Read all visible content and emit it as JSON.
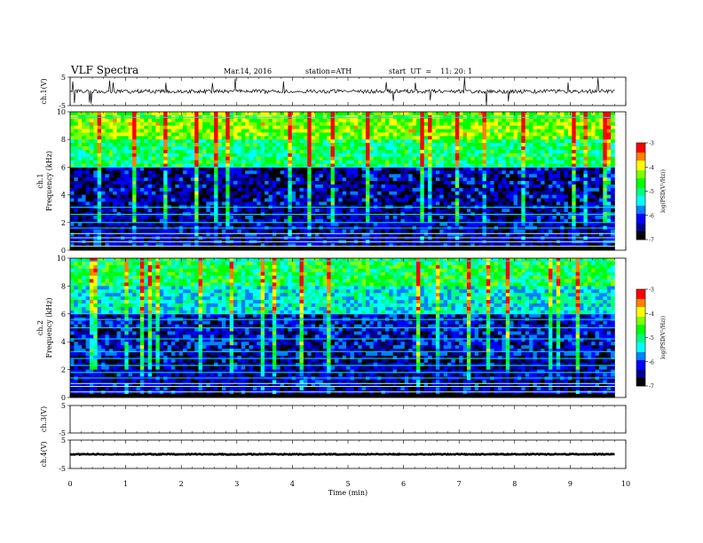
{
  "header": {
    "title": "VLF Spectra",
    "date": "Mar.14, 2016",
    "station": "station=ATH",
    "start_ut": "start  UT  =    11: 20: 1"
  },
  "chart_data": [
    {
      "type": "line",
      "panel": "ch1-waveform",
      "ylabel": "ch.1(V)",
      "yticks": [
        "5",
        "-5"
      ],
      "ylim": [
        -5,
        5
      ],
      "xlim": [
        0,
        10
      ],
      "description_values": {
        "baseline_v": 0.0,
        "noise_amplitude_v": 0.8,
        "spike_amplitude_v": 5
      }
    },
    {
      "type": "heatmap",
      "panel": "ch1-spectrogram",
      "ylabel": "ch.1 Frequency (kHz)",
      "yticks": [
        "10",
        "8",
        "6",
        "4",
        "2",
        "0"
      ],
      "ylim": [
        0,
        10
      ],
      "xlim": [
        0,
        10
      ],
      "colorbar": {
        "label": "log(PSD(V²/Hz))",
        "ticks": [
          "-3",
          "-4",
          "-5",
          "-6",
          "-7"
        ],
        "range": [
          -7,
          -3
        ]
      }
    },
    {
      "type": "heatmap",
      "panel": "ch2-spectrogram",
      "ylabel": "ch.2 Frequency (kHz)",
      "yticks": [
        "10",
        "8",
        "6",
        "4",
        "2",
        "0"
      ],
      "ylim": [
        0,
        10
      ],
      "xlim": [
        0,
        10
      ],
      "colorbar": {
        "label": "log(PSD(V²/Hz))",
        "ticks": [
          "-3",
          "-4",
          "-5",
          "-6",
          "-7"
        ],
        "range": [
          -7,
          -3
        ]
      }
    },
    {
      "type": "line",
      "panel": "ch3-waveform",
      "ylabel": "ch.3(V)",
      "yticks": [
        "5",
        "-5"
      ],
      "ylim": [
        -5,
        5
      ],
      "xlim": [
        0,
        10
      ]
    },
    {
      "type": "line",
      "panel": "ch4-waveform",
      "ylabel": "ch.4(V)",
      "yticks": [
        "5",
        "-5"
      ],
      "ylim": [
        -5,
        5
      ],
      "xlim": [
        0,
        10
      ],
      "description_values": {
        "baseline_v": 0.0
      }
    }
  ],
  "xaxis": {
    "label": "Time  (min)",
    "ticks": [
      "0",
      "1",
      "2",
      "3",
      "4",
      "5",
      "6",
      "7",
      "8",
      "9",
      "10"
    ],
    "data_end_min": 9.8
  },
  "colors": {
    "colormap": [
      "#000000",
      "#00008b",
      "#0000ff",
      "#0080ff",
      "#00ffff",
      "#00ff80",
      "#00ff00",
      "#80ff00",
      "#ffff00",
      "#ff8000",
      "#ff0000",
      "#ffffff"
    ]
  }
}
